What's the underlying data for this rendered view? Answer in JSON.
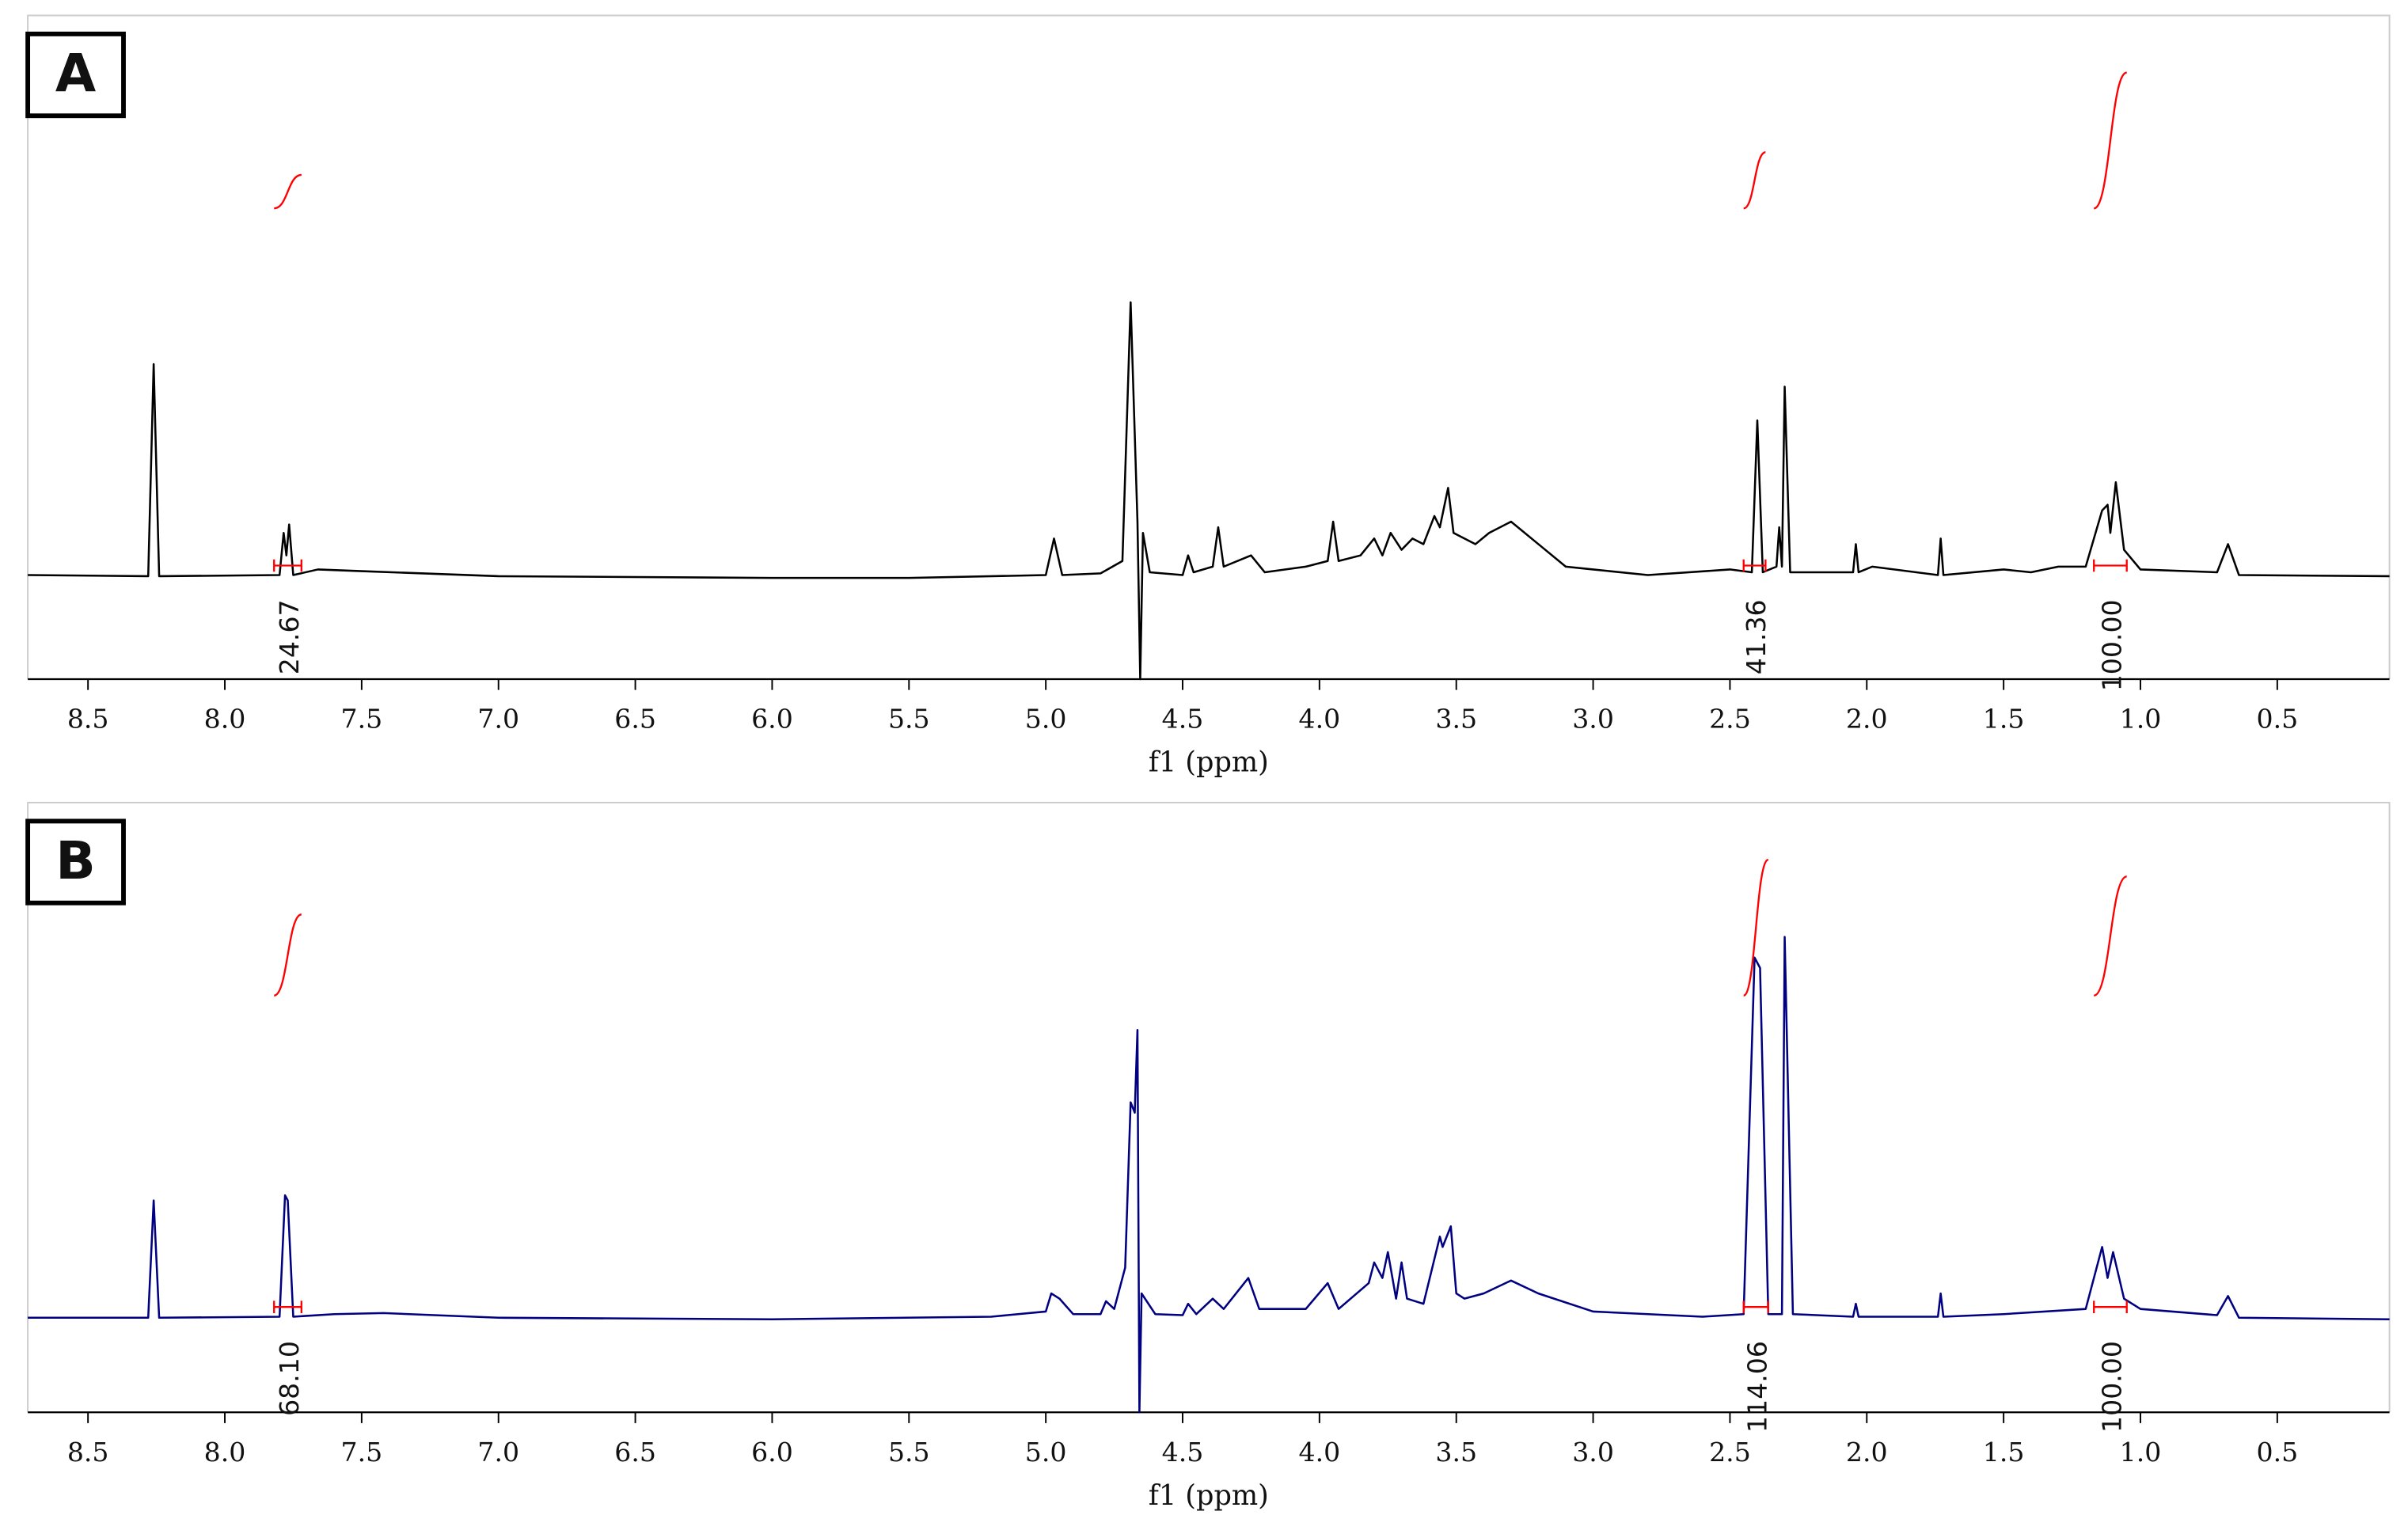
{
  "chart_data": [
    {
      "type": "line",
      "label": "A",
      "xlabel": "f1 (ppm)",
      "color": "#000000",
      "xlim": [
        8.72,
        0.09
      ],
      "ylim": [
        -18,
        100
      ],
      "xticks": [
        8.5,
        {
          "value": 8,
          "label": "8.0"
        },
        7.5,
        {
          "value": 7,
          "label": "7.0"
        },
        6.5,
        {
          "value": 6,
          "label": "6.0"
        },
        5.5,
        {
          "value": 5,
          "label": "5.0"
        },
        4.5,
        {
          "value": 4,
          "label": "4.0"
        },
        3.5,
        {
          "value": 3,
          "label": "3.0"
        },
        2.5,
        {
          "value": 2,
          "label": "2.0"
        },
        1.5,
        {
          "value": 1,
          "label": "1.0"
        },
        0.5
      ],
      "x": [
        8.72,
        8.28,
        8.26,
        8.24,
        7.8,
        7.785,
        7.775,
        7.765,
        7.75,
        7.66,
        7.5,
        7.0,
        6.0,
        5.5,
        5.0,
        4.97,
        4.94,
        4.8,
        4.72,
        4.69,
        4.665,
        4.655,
        4.645,
        4.62,
        4.5,
        4.48,
        4.46,
        4.39,
        4.37,
        4.35,
        4.25,
        4.2,
        4.05,
        3.97,
        3.95,
        3.93,
        3.85,
        3.8,
        3.77,
        3.74,
        3.7,
        3.66,
        3.62,
        3.58,
        3.56,
        3.53,
        3.51,
        3.47,
        3.43,
        3.38,
        3.3,
        3.2,
        3.1,
        3.0,
        2.8,
        2.5,
        2.42,
        2.4,
        2.38,
        2.33,
        2.32,
        2.31,
        2.3,
        2.28,
        2.05,
        2.04,
        2.03,
        1.98,
        1.74,
        1.73,
        1.72,
        1.5,
        1.4,
        1.3,
        1.2,
        1.14,
        1.12,
        1.11,
        1.09,
        1.06,
        1.0,
        0.72,
        0.68,
        0.64,
        0.09
      ],
      "values": [
        0.5,
        0.3,
        38,
        0.3,
        0.5,
        8,
        4,
        9.5,
        0.5,
        1.5,
        1.2,
        0.3,
        0,
        0,
        0.5,
        7,
        0.5,
        0.8,
        3,
        49,
        10,
        -18,
        8,
        1,
        0.5,
        4,
        1,
        2,
        9,
        2,
        4,
        1,
        2,
        3,
        10,
        3,
        4,
        7,
        4,
        8,
        5,
        7,
        6,
        11,
        9,
        16,
        8,
        7,
        6,
        8,
        10,
        6,
        2,
        1.5,
        0.5,
        1.5,
        1,
        28,
        1,
        2,
        9,
        2,
        34,
        1,
        1,
        6,
        1,
        2,
        0.5,
        7,
        0.5,
        1.5,
        1,
        2,
        2,
        12,
        13,
        8,
        17,
        5,
        1.5,
        1,
        6,
        0.5,
        0.3
      ],
      "integrals": {
        "color": "#ff0000",
        "ranges": [
          [
            7.82,
            7.72
          ],
          [
            2.45,
            2.37
          ],
          [
            1.17,
            1.05
          ]
        ],
        "values": [
          24.67,
          41.36,
          100
        ],
        "value_labels": [
          "24.67",
          "41.36",
          "100.00"
        ]
      }
    },
    {
      "type": "line",
      "label": "B",
      "xlabel": "f1 (ppm)",
      "color": "#000080",
      "xlim": [
        8.72,
        0.09
      ],
      "ylim": [
        -18,
        100
      ],
      "xticks": [
        8.5,
        {
          "value": 8,
          "label": "8.0"
        },
        7.5,
        {
          "value": 7,
          "label": "7.0"
        },
        6.5,
        {
          "value": 6,
          "label": "6.0"
        },
        5.5,
        {
          "value": 5,
          "label": "5.0"
        },
        4.5,
        {
          "value": 4,
          "label": "4.0"
        },
        3.5,
        {
          "value": 3,
          "label": "3.0"
        },
        2.5,
        {
          "value": 2,
          "label": "2.0"
        },
        1.5,
        {
          "value": 1,
          "label": "1.0"
        },
        0.5
      ],
      "x": [
        8.72,
        8.28,
        8.26,
        8.24,
        7.8,
        7.78,
        7.77,
        7.75,
        7.6,
        7.42,
        7.0,
        6.0,
        5.2,
        5.0,
        4.98,
        4.95,
        4.9,
        4.8,
        4.78,
        4.75,
        4.71,
        4.69,
        4.675,
        4.665,
        4.658,
        4.65,
        4.6,
        4.5,
        4.48,
        4.45,
        4.39,
        4.35,
        4.26,
        4.22,
        4.05,
        3.97,
        3.93,
        3.82,
        3.8,
        3.77,
        3.75,
        3.72,
        3.7,
        3.68,
        3.62,
        3.56,
        3.55,
        3.52,
        3.5,
        3.47,
        3.4,
        3.3,
        3.2,
        3.0,
        2.6,
        2.45,
        2.41,
        2.39,
        2.36,
        2.31,
        2.3,
        2.27,
        2.05,
        2.04,
        2.03,
        1.74,
        1.73,
        1.72,
        1.5,
        1.2,
        1.14,
        1.12,
        1.1,
        1.06,
        1.0,
        0.72,
        0.68,
        0.64,
        0.09
      ],
      "values": [
        0.3,
        0.3,
        23,
        0.3,
        0.5,
        24,
        23,
        0.5,
        1,
        1.2,
        0.3,
        0,
        0.5,
        1.5,
        5,
        4,
        1,
        1,
        3.5,
        2,
        10,
        42,
        40,
        56,
        -18,
        5,
        1,
        0.8,
        3,
        1,
        4,
        2,
        8,
        2,
        2,
        7,
        2,
        7,
        11,
        8,
        13,
        4,
        11,
        4,
        3,
        16,
        14,
        18,
        5,
        4,
        5,
        7.5,
        5,
        1.5,
        0.5,
        1,
        70,
        68,
        1,
        1,
        74,
        1,
        0.5,
        3,
        0.5,
        0.5,
        5,
        0.5,
        1,
        2,
        14,
        8,
        13,
        4,
        2,
        0.8,
        4.5,
        0.3,
        0
      ],
      "integrals": {
        "color": "#ff0000",
        "ranges": [
          [
            7.82,
            7.72
          ],
          [
            2.45,
            2.36
          ],
          [
            1.17,
            1.05
          ]
        ],
        "values": [
          68.1,
          114.06,
          100
        ],
        "value_labels": [
          "68.10",
          "114.06",
          "100.00"
        ]
      }
    }
  ]
}
